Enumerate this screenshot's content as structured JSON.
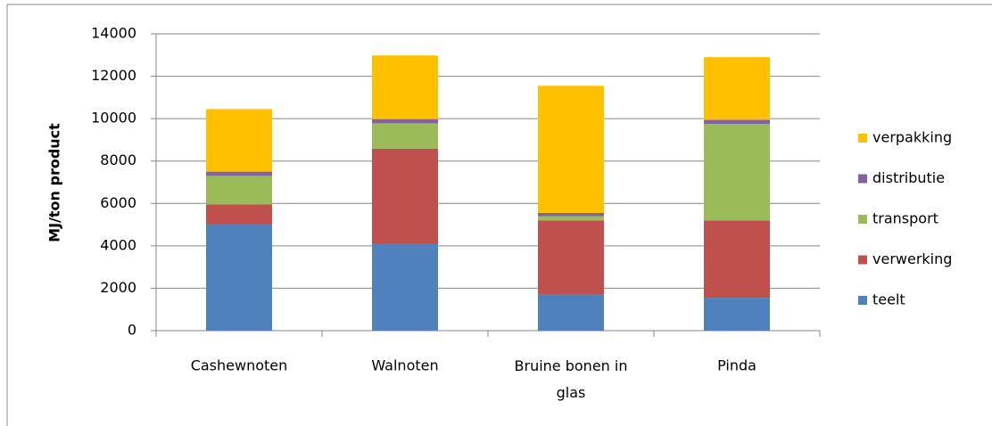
{
  "chart_data": {
    "type": "stacked_bar",
    "y_label": "MJ/ton product",
    "categories": [
      "Cashewnoten",
      "Walnoten",
      "Bruine bonen in glas",
      "Pinda"
    ],
    "series": [
      {
        "name": "teelt",
        "color": "#4f81bd",
        "values": [
          5000,
          4100,
          1700,
          1550
        ]
      },
      {
        "name": "verwerking",
        "color": "#c0504d",
        "values": [
          950,
          4480,
          3500,
          3650
        ]
      },
      {
        "name": "transport",
        "color": "#9bbb59",
        "values": [
          1350,
          1200,
          200,
          4550
        ]
      },
      {
        "name": "distributie",
        "color": "#8064a2",
        "values": [
          200,
          200,
          150,
          200
        ]
      },
      {
        "name": "verpakking",
        "color": "#ffc000",
        "values": [
          2950,
          3000,
          6000,
          2950
        ]
      }
    ],
    "ylim": [
      0,
      14000
    ],
    "yticks": [
      0,
      2000,
      4000,
      6000,
      8000,
      10000,
      12000,
      14000
    ],
    "grid": true,
    "legend": "right"
  }
}
